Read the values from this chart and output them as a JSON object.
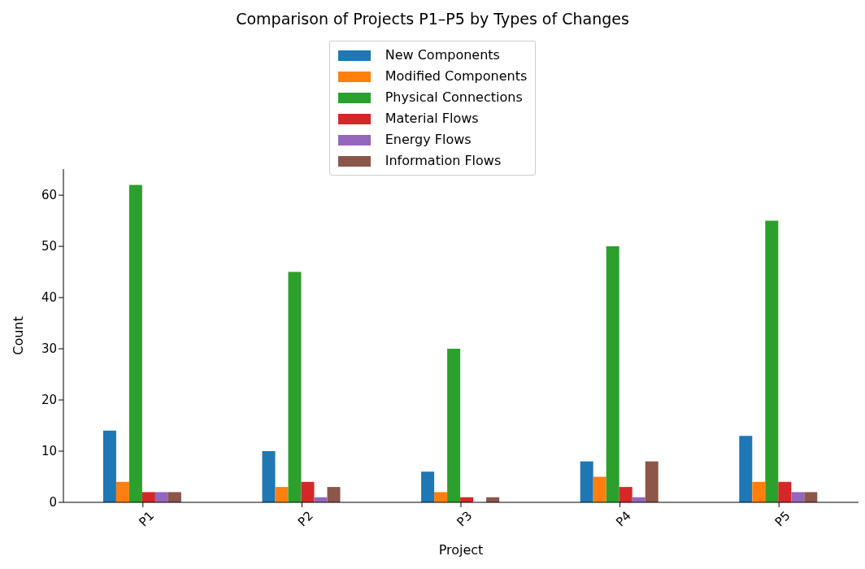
{
  "chart_data": {
    "type": "bar",
    "title": "Comparison of Projects P1–P5 by Types of Changes",
    "xlabel": "Project",
    "ylabel": "Count",
    "categories": [
      "P1",
      "P2",
      "P3",
      "P4",
      "P5"
    ],
    "series": [
      {
        "name": "New Components",
        "color": "#1f77b4",
        "values": [
          14,
          10,
          6,
          8,
          13
        ]
      },
      {
        "name": "Modified Components",
        "color": "#ff7f0e",
        "values": [
          4,
          3,
          2,
          5,
          4
        ]
      },
      {
        "name": "Physical Connections",
        "color": "#2ca02c",
        "values": [
          62,
          45,
          30,
          50,
          55
        ]
      },
      {
        "name": "Material Flows",
        "color": "#d62728",
        "values": [
          2,
          4,
          1,
          3,
          4
        ]
      },
      {
        "name": "Energy Flows",
        "color": "#9467bd",
        "values": [
          2,
          1,
          0,
          1,
          2
        ]
      },
      {
        "name": "Information Flows",
        "color": "#8c564b",
        "values": [
          2,
          3,
          1,
          8,
          2
        ]
      }
    ],
    "ylim": [
      0,
      65.1
    ],
    "yticks": [
      0,
      10,
      20,
      30,
      40,
      50,
      60
    ],
    "grid": false,
    "legend": "top"
  }
}
